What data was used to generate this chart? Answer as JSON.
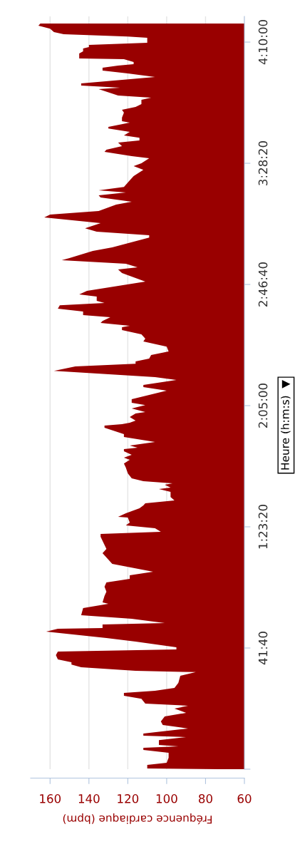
{
  "chart_data": {
    "type": "area",
    "orientation": "horizontal",
    "xlabel": "Fréquence cardiaque (bpm)",
    "ylabel": "Heure (h:m:s)  ▼",
    "xlim": [
      170,
      60
    ],
    "ylim": [
      0,
      15530
    ],
    "xticks": [
      60,
      80,
      100,
      120,
      140,
      160
    ],
    "yticks": [
      {
        "value": 0,
        "label": null
      },
      {
        "value": 2500,
        "label": "41:40"
      },
      {
        "value": 5000,
        "label": "1:23:20"
      },
      {
        "value": 7500,
        "label": "2:05:00"
      },
      {
        "value": 10000,
        "label": "2:46:40"
      },
      {
        "value": 12500,
        "label": "3:28:20"
      },
      {
        "value": 15000,
        "label": "4:10:00"
      }
    ],
    "grid": "x",
    "series": [
      {
        "color": "#990000",
        "x": [
          0,
          14,
          90,
          133,
          234,
          338,
          396,
          443,
          472,
          500,
          601,
          662,
          691,
          734,
          839,
          911,
          986,
          1087,
          1163,
          1249,
          1310,
          1354,
          1454,
          1516,
          1573,
          1616,
          1678,
          1778,
          1926,
          2002,
          2030,
          2102,
          2160,
          2207,
          2264,
          2354,
          2426,
          2470,
          2516,
          2632,
          2707,
          2837,
          2898,
          2912,
          2984,
          3013,
          3103,
          3175,
          3323,
          3413,
          3442,
          3575,
          3661,
          3766,
          3852,
          3928,
          4000,
          4075,
          4234,
          4457,
          4543,
          4795,
          4853,
          4896,
          4972,
          5029,
          5087,
          5191,
          5206,
          5278,
          5382,
          5440,
          5486,
          5544,
          5616,
          5720,
          5778,
          5810,
          5868,
          5897,
          5940,
          6001,
          6102,
          6221,
          6307,
          6383,
          6426,
          6484,
          6559,
          6602,
          6631,
          6678,
          6750,
          6854,
          6912,
          7045,
          7088,
          7117,
          7146,
          7193,
          7265,
          7337,
          7369,
          7441,
          7513,
          7560,
          7632,
          7808,
          7884,
          7927,
          8028,
          8089,
          8219,
          8309,
          8366,
          8413,
          8471,
          8543,
          8618,
          8719,
          8824,
          8881,
          8971,
          9058,
          9119,
          9148,
          9205,
          9248,
          9324,
          9367,
          9443,
          9500,
          9572,
          9619,
          9662,
          9749,
          9796,
          9868,
          10058,
          10235,
          10310,
          10354,
          10426,
          10501,
          10544,
          10692,
          10764,
          10969,
          11016,
          11088,
          11160,
          11264,
          11383,
          11441,
          11516,
          11560,
          11646,
          11707,
          11794,
          11837,
          11898,
          11941,
          12013,
          12146,
          12236,
          12366,
          12442,
          12499,
          12604,
          12647,
          12737,
          12780,
          12852,
          12928,
          12971,
          13028,
          13075,
          13147,
          13219,
          13252,
          13338,
          13367,
          13442,
          13543,
          13604,
          13662,
          13720,
          13810,
          13853,
          13896,
          14029,
          14058,
          14105,
          14148,
          14281,
          14353,
          14411,
          14472,
          14515,
          14544,
          14587,
          14648,
          14663,
          14764,
          14810,
          14868,
          14897,
          14940,
          14987,
          15088,
          15116,
          15163,
          15206,
          15278,
          15340,
          15383
        ],
        "values": [
          73,
          110,
          110,
          100,
          99,
          99,
          112,
          112,
          94,
          104,
          104,
          90,
          112,
          112,
          89,
          102,
          103,
          101,
          90,
          96,
          89,
          111,
          113,
          122,
          122,
          106,
          96,
          94,
          93,
          85,
          116,
          144,
          149,
          149,
          156,
          157,
          156,
          95,
          95,
          116,
          131,
          162,
          156,
          133,
          133,
          101,
          118,
          144,
          143,
          130,
          133,
          132,
          131,
          132,
          131,
          119,
          119,
          107,
          128,
          133,
          131,
          134,
          134,
          103,
          106,
          121,
          119,
          120,
          125,
          121,
          114,
          112,
          111,
          96,
          98,
          98,
          104,
          98,
          101,
          97,
          112,
          118,
          120,
          121,
          122,
          119,
          122,
          118,
          122,
          122,
          115,
          119,
          106,
          122,
          122,
          132,
          132,
          123,
          119,
          116,
          119,
          116,
          111,
          118,
          111,
          118,
          118,
          100,
          112,
          112,
          95,
          106,
          158,
          147,
          116,
          116,
          109,
          108,
          99,
          100,
          112,
          111,
          113,
          123,
          123,
          119,
          134,
          133,
          129,
          143,
          143,
          156,
          155,
          132,
          136,
          136,
          145,
          141,
          111,
          123,
          125,
          115,
          121,
          154,
          150,
          138,
          128,
          109,
          109,
          136,
          142,
          134,
          163,
          160,
          135,
          132,
          126,
          118,
          134,
          135,
          121,
          135,
          122,
          119,
          117,
          112,
          117,
          113,
          109,
          118,
          132,
          131,
          123,
          125,
          114,
          114,
          122,
          119,
          130,
          130,
          119,
          123,
          123,
          122,
          123,
          116,
          113,
          113,
          108,
          125,
          135,
          124,
          144,
          144,
          106,
          120,
          133,
          133,
          125,
          117,
          117,
          122,
          145,
          145,
          143,
          143,
          140,
          140,
          110,
          110,
          120,
          153,
          158,
          160,
          166,
          165
        ]
      }
    ]
  }
}
